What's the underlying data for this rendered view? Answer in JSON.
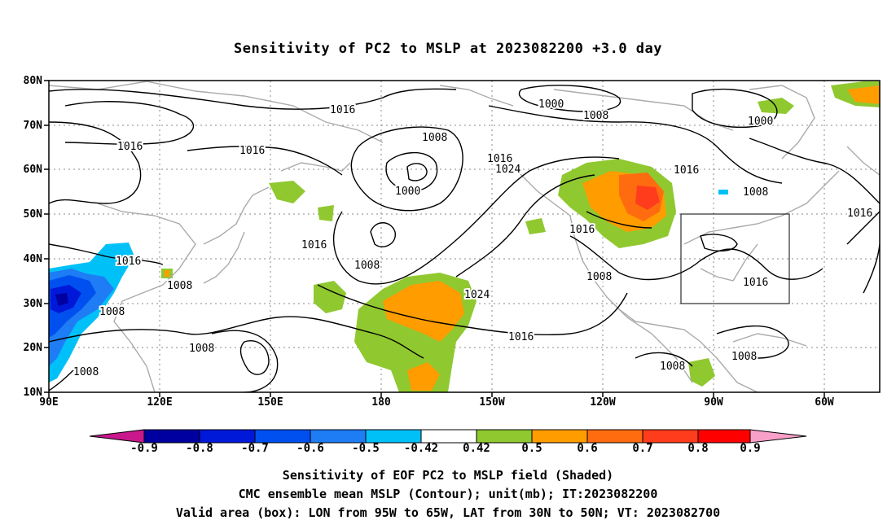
{
  "title": "Sensitivity of PC2 to MSLP at 2023082200 +3.0 day",
  "map": {
    "lat_labels": [
      "80N",
      "70N",
      "60N",
      "50N",
      "40N",
      "30N",
      "20N",
      "10N"
    ],
    "lon_labels": [
      "90E",
      "120E",
      "150E",
      "180",
      "150W",
      "120W",
      "90W",
      "60W"
    ],
    "contour_labels": [
      {
        "text": "1016"
      },
      {
        "text": "1016"
      },
      {
        "text": "1016"
      },
      {
        "text": "1016"
      },
      {
        "text": "1008"
      },
      {
        "text": "1000"
      },
      {
        "text": "1016"
      },
      {
        "text": "1024"
      },
      {
        "text": "1008"
      },
      {
        "text": "1016"
      },
      {
        "text": "1008"
      },
      {
        "text": "1008"
      },
      {
        "text": "1008"
      },
      {
        "text": "1024"
      },
      {
        "text": "1016"
      },
      {
        "text": "1008"
      },
      {
        "text": "1000"
      },
      {
        "text": "1008"
      },
      {
        "text": "1000"
      },
      {
        "text": "1016"
      },
      {
        "text": "1008"
      },
      {
        "text": "1016"
      },
      {
        "text": "1016"
      },
      {
        "text": "1016"
      },
      {
        "text": "1008"
      },
      {
        "text": "1008"
      }
    ],
    "valid_box": {
      "lon_from": "95W",
      "lon_to": "65W",
      "lat_from": "30N",
      "lat_to": "50N"
    }
  },
  "colorbar": {
    "labels": [
      "-0.9",
      "-0.8",
      "-0.7",
      "-0.6",
      "-0.5",
      "-0.42",
      "0.42",
      "0.5",
      "0.6",
      "0.7",
      "0.8",
      "0.9"
    ],
    "colors": [
      "#c8188c",
      "#0000a0",
      "#0018d8",
      "#0050f0",
      "#1e7cf5",
      "#00c0f8",
      "#ffffff",
      "#90c830",
      "#ff9c00",
      "#ff6c10",
      "#ff3c1c",
      "#ff0000",
      "#f8a0c8"
    ]
  },
  "captions": [
    "Sensitivity of EOF PC2 to MSLP field (Shaded)",
    "CMC ensemble mean MSLP (Contour); unit(mb); IT:2023082200",
    "Valid area (box): LON from 95W to 65W, LAT from 30N to 50N; VT: 2023082700"
  ]
}
